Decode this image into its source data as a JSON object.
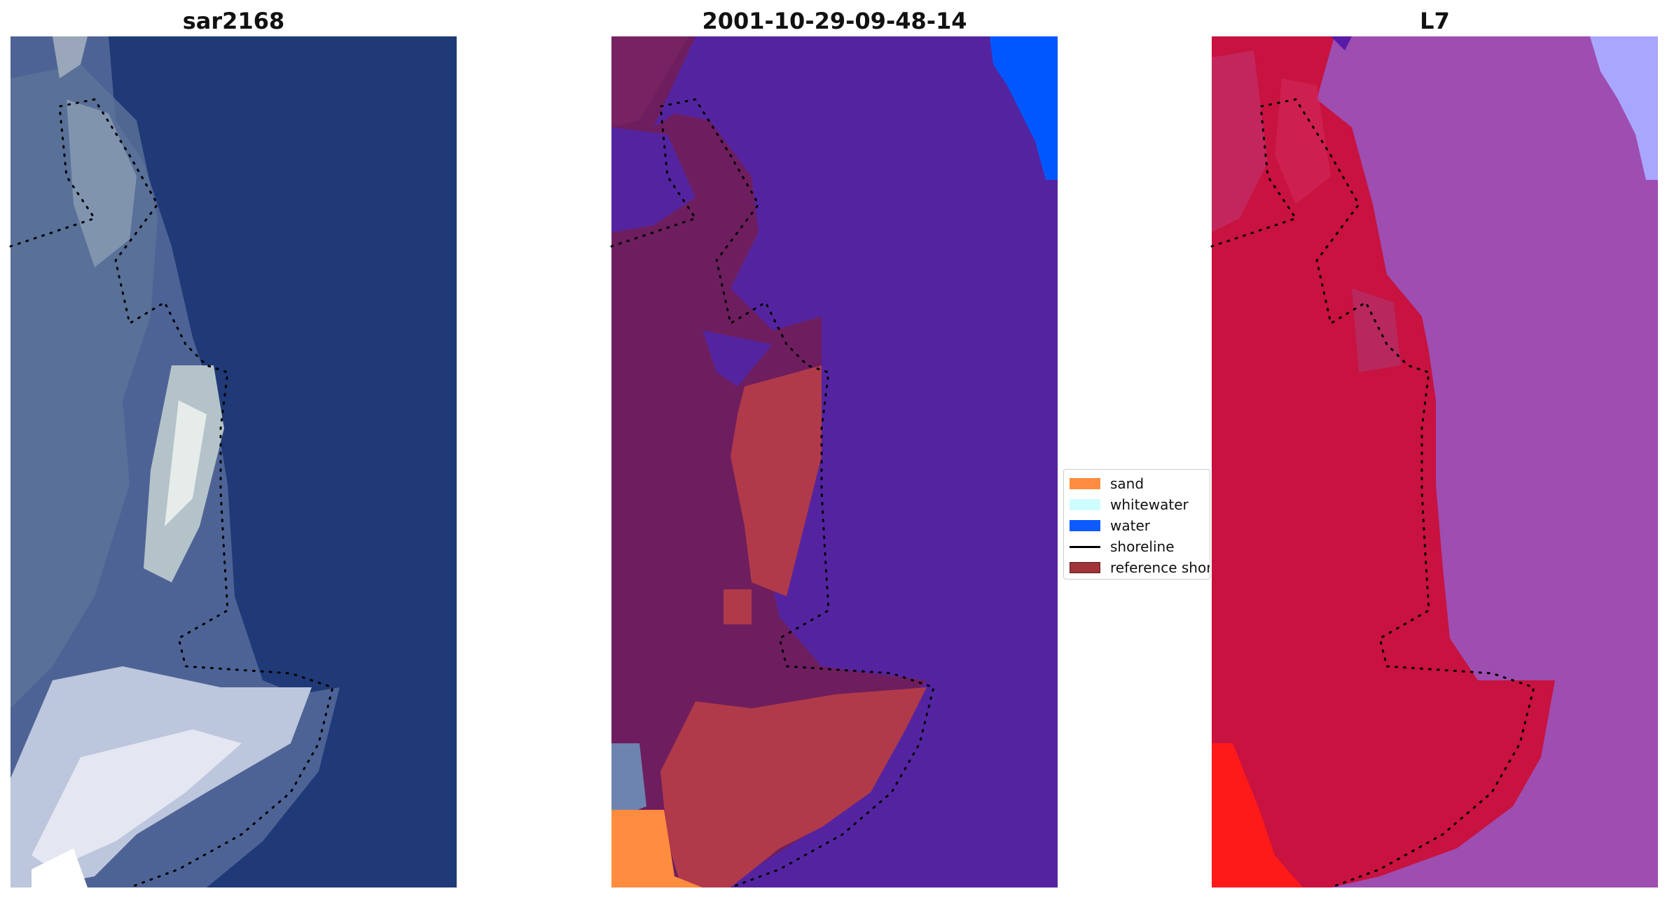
{
  "panels": [
    {
      "title": "sar2168"
    },
    {
      "title": "2001-10-29-09-48-14"
    },
    {
      "title": "L7"
    }
  ],
  "legend": {
    "items": [
      {
        "label": "sand",
        "color": "#ff8c3f",
        "type": "patch"
      },
      {
        "label": "whitewater",
        "color": "#cffdff",
        "type": "patch"
      },
      {
        "label": "water",
        "color": "#0b5bff",
        "type": "patch"
      },
      {
        "label": "shoreline",
        "color": "#000000",
        "type": "line"
      },
      {
        "label": "reference shoreline",
        "color": "#a0343a",
        "type": "patch"
      }
    ]
  },
  "colors": {
    "rgb_water": "#1f3a77",
    "rgb_land": "#6d7fa8",
    "rgb_bright": "#dfe8f0",
    "class_water_overlay": "#5424a0",
    "class_land": "#6e1e5e",
    "class_sand_patch": "#b03a4a",
    "class_water_corner": "#0057ff",
    "l7_water": "#9e4db0",
    "l7_land": "#c8123f",
    "l7_corner": "#ff1a1a",
    "l7_blue_corner": "#a9a6ff",
    "shoreline_points": "#000000"
  }
}
